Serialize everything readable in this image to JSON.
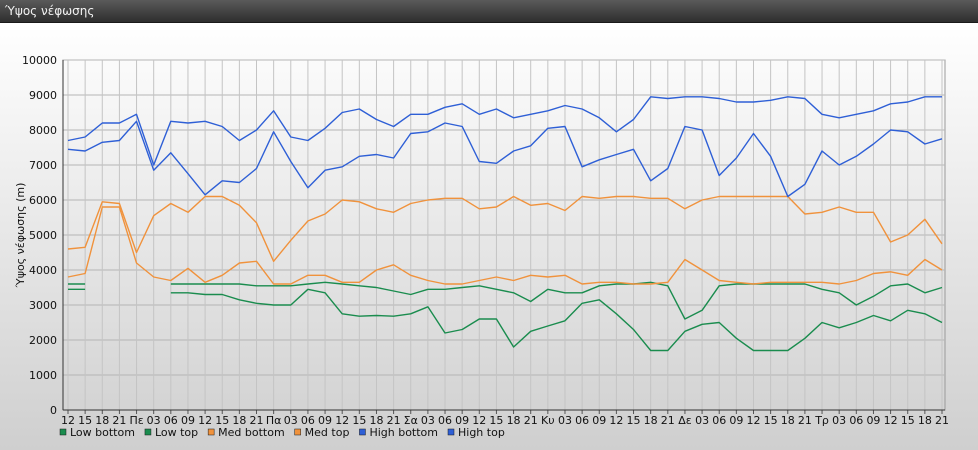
{
  "window": {
    "title": "Ύψος νέφωσης"
  },
  "chart_data": {
    "type": "line",
    "title": "",
    "ylabel": "Ύψος νέφωσης (m)",
    "xlabel": "",
    "ylim": [
      0,
      10000
    ],
    "yticks": [
      0,
      1000,
      2000,
      3000,
      4000,
      5000,
      6000,
      7000,
      8000,
      9000,
      10000
    ],
    "grid": true,
    "legend": "bottom-left",
    "x": [
      "12",
      "15",
      "18",
      "21",
      "Πε",
      "03",
      "06",
      "09",
      "12",
      "15",
      "18",
      "21",
      "Πα",
      "03",
      "06",
      "09",
      "12",
      "15",
      "18",
      "21",
      "Σα",
      "03",
      "06",
      "09",
      "12",
      "15",
      "18",
      "21",
      "Κυ",
      "03",
      "06",
      "09",
      "12",
      "15",
      "18",
      "21",
      "Δε",
      "03",
      "06",
      "09",
      "12",
      "15",
      "18",
      "21",
      "Τρ",
      "03",
      "06",
      "09",
      "12",
      "15",
      "18",
      "21"
    ],
    "series": [
      {
        "name": "Low bottom",
        "color": "#1a8c4e",
        "values": [
          3450,
          3450,
          null,
          null,
          null,
          null,
          3350,
          3350,
          3300,
          3300,
          3150,
          3050,
          3000,
          3000,
          3450,
          3350,
          2750,
          2680,
          2700,
          2680,
          2750,
          2950,
          2200,
          2300,
          2600,
          2600,
          1800,
          2250,
          2400,
          2550,
          3050,
          3150,
          2750,
          2300,
          1700,
          1700,
          2250,
          2450,
          2500,
          2050,
          1700,
          1700,
          1700,
          2050,
          2500,
          2350,
          2500,
          2700,
          2550,
          2850,
          2750,
          2500
        ]
      },
      {
        "name": "Low top",
        "color": "#1a8c4e",
        "values": [
          3600,
          3600,
          null,
          null,
          null,
          null,
          3600,
          3600,
          3600,
          3600,
          3600,
          3550,
          3550,
          3550,
          3600,
          3650,
          3600,
          3550,
          3500,
          3400,
          3300,
          3450,
          3450,
          3500,
          3550,
          3450,
          3350,
          3100,
          3450,
          3350,
          3350,
          3550,
          3600,
          3600,
          3650,
          3550,
          2600,
          2850,
          3550,
          3600,
          3600,
          3600,
          3600,
          3600,
          3450,
          3350,
          3000,
          3250,
          3550,
          3600,
          3350,
          3500
        ]
      },
      {
        "name": "Med bottom",
        "color": "#f0923c",
        "values": [
          3800,
          3900,
          5800,
          5800,
          4200,
          3800,
          3700,
          4050,
          3650,
          3850,
          4200,
          4250,
          3600,
          3600,
          3850,
          3850,
          3650,
          3650,
          4000,
          4150,
          3850,
          3700,
          3600,
          3600,
          3700,
          3800,
          3700,
          3850,
          3800,
          3850,
          3600,
          3650,
          3650,
          3600,
          3600,
          3650,
          4300,
          4000,
          3700,
          3650,
          3600,
          3650,
          3650,
          3650,
          3650,
          3600,
          3700,
          3900,
          3950,
          3850,
          4300,
          4000
        ]
      },
      {
        "name": "Med top",
        "color": "#f0923c",
        "values": [
          4600,
          4650,
          5950,
          5900,
          4500,
          5550,
          5900,
          5650,
          6100,
          6100,
          5850,
          5350,
          4250,
          4850,
          5400,
          5600,
          6000,
          5950,
          5750,
          5650,
          5900,
          6000,
          6050,
          6050,
          5750,
          5800,
          6100,
          5850,
          5900,
          5700,
          6100,
          6050,
          6100,
          6100,
          6050,
          6050,
          5750,
          6000,
          6100,
          6100,
          6100,
          6100,
          6100,
          5600,
          5650,
          5800,
          5650,
          5650,
          4800,
          5000,
          5450,
          4750
        ]
      },
      {
        "name": "High bottom",
        "color": "#2e5fd6",
        "values": [
          7450,
          7400,
          7650,
          7700,
          8250,
          6850,
          7350,
          6750,
          6150,
          6550,
          6500,
          6900,
          7950,
          7100,
          6350,
          6850,
          6950,
          7250,
          7300,
          7200,
          7900,
          7950,
          8200,
          8100,
          7100,
          7050,
          7400,
          7550,
          8050,
          8100,
          6950,
          7150,
          7300,
          7450,
          6550,
          6900,
          8100,
          8000,
          6700,
          7200,
          7900,
          7250,
          6100,
          6450,
          7400,
          7000,
          7250,
          7600,
          8000,
          7950,
          7600,
          7750
        ]
      },
      {
        "name": "High top",
        "color": "#2e5fd6",
        "values": [
          7700,
          7800,
          8200,
          8200,
          8450,
          7000,
          8250,
          8200,
          8250,
          8100,
          7700,
          8000,
          8550,
          7800,
          7700,
          8050,
          8500,
          8600,
          8300,
          8100,
          8450,
          8450,
          8650,
          8750,
          8450,
          8600,
          8350,
          8450,
          8550,
          8700,
          8600,
          8350,
          7950,
          8300,
          8950,
          8900,
          8950,
          8950,
          8900,
          8800,
          8800,
          8850,
          8950,
          8900,
          8450,
          8350,
          8450,
          8550,
          8750,
          8800,
          8950,
          8950
        ]
      }
    ]
  }
}
